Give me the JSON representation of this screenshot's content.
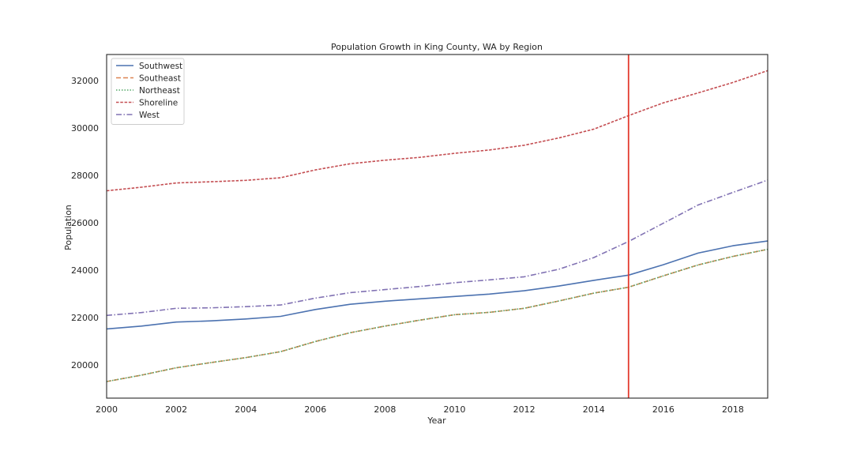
{
  "chart_data": {
    "type": "line",
    "title": "Population Growth in King County, WA by Region",
    "xlabel": "Year",
    "ylabel": "Population",
    "x": [
      2000,
      2001,
      2002,
      2003,
      2004,
      2005,
      2006,
      2007,
      2008,
      2009,
      2010,
      2011,
      2012,
      2013,
      2014,
      2015,
      2016,
      2017,
      2018,
      2019
    ],
    "xlim": [
      2000,
      2019
    ],
    "ylim": [
      18600,
      33100
    ],
    "xticks": [
      2000,
      2002,
      2004,
      2006,
      2008,
      2010,
      2012,
      2014,
      2016,
      2018
    ],
    "yticks": [
      20000,
      22000,
      24000,
      26000,
      28000,
      30000,
      32000
    ],
    "xtick_labels": [
      "2000",
      "2002",
      "2004",
      "2006",
      "2008",
      "2010",
      "2012",
      "2014",
      "2016",
      "2018"
    ],
    "ytick_labels": [
      "20000",
      "22000",
      "24000",
      "26000",
      "28000",
      "30000",
      "32000"
    ],
    "grid": false,
    "legend_position": "top-left",
    "vline": {
      "x": 2015,
      "color": "#e33b2f"
    },
    "series": [
      {
        "name": "Southwest",
        "color": "#4c72b0",
        "dash": "solid",
        "values": [
          21520,
          21640,
          21810,
          21860,
          21940,
          22050,
          22340,
          22560,
          22690,
          22790,
          22890,
          22990,
          23130,
          23330,
          23570,
          23790,
          24230,
          24720,
          25030,
          25230
        ]
      },
      {
        "name": "Southeast",
        "color": "#dd8452",
        "dash": "dashed",
        "values": [
          19300,
          19570,
          19880,
          20100,
          20310,
          20560,
          20990,
          21360,
          21640,
          21890,
          22120,
          22220,
          22390,
          22700,
          23030,
          23280,
          23760,
          24220,
          24580,
          24880
        ]
      },
      {
        "name": "Northeast",
        "color": "#55a868",
        "dash": "dotted",
        "values": [
          19300,
          19570,
          19880,
          20100,
          20310,
          20560,
          20990,
          21360,
          21640,
          21890,
          22120,
          22220,
          22390,
          22700,
          23030,
          23280,
          23760,
          24220,
          24580,
          24880
        ]
      },
      {
        "name": "Shoreline",
        "color": "#c44e52",
        "dash": "densedash",
        "values": [
          27350,
          27500,
          27680,
          27730,
          27790,
          27900,
          28230,
          28490,
          28640,
          28760,
          28930,
          29070,
          29270,
          29580,
          29950,
          30520,
          31060,
          31480,
          31920,
          32420
        ]
      },
      {
        "name": "West",
        "color": "#8172b3",
        "dash": "dashdot",
        "values": [
          22090,
          22210,
          22390,
          22410,
          22460,
          22530,
          22820,
          23050,
          23180,
          23310,
          23470,
          23590,
          23720,
          24040,
          24530,
          25210,
          25980,
          26750,
          27280,
          27800
        ]
      }
    ]
  }
}
